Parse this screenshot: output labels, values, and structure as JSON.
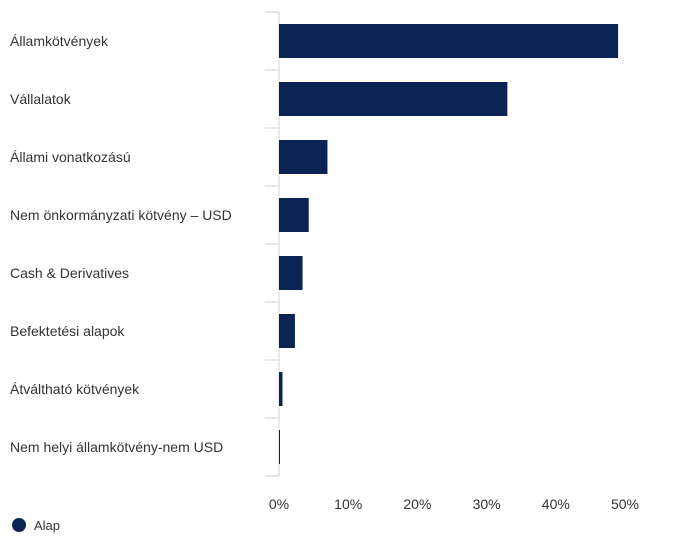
{
  "chart_data": {
    "type": "bar",
    "orientation": "horizontal",
    "categories": [
      "Államkötvények",
      "Vállalatok",
      "Állami vonatkozású",
      "Nem önkormányzati kötvény – USD",
      "Cash & Derivatives",
      "Befektetési alapok",
      "Átváltható kötvények",
      "Nem helyi államkötvény-nem USD"
    ],
    "series": [
      {
        "name": "Alap",
        "color": "#0b2455",
        "values": [
          49.0,
          33.0,
          7.0,
          4.3,
          3.4,
          2.3,
          0.5,
          0.1
        ]
      }
    ],
    "x_ticks": [
      0,
      10,
      20,
      30,
      40,
      50
    ],
    "x_tick_suffix": "%",
    "xlim": [
      0,
      56
    ],
    "grid": false,
    "legend_position": "bottom-left"
  }
}
